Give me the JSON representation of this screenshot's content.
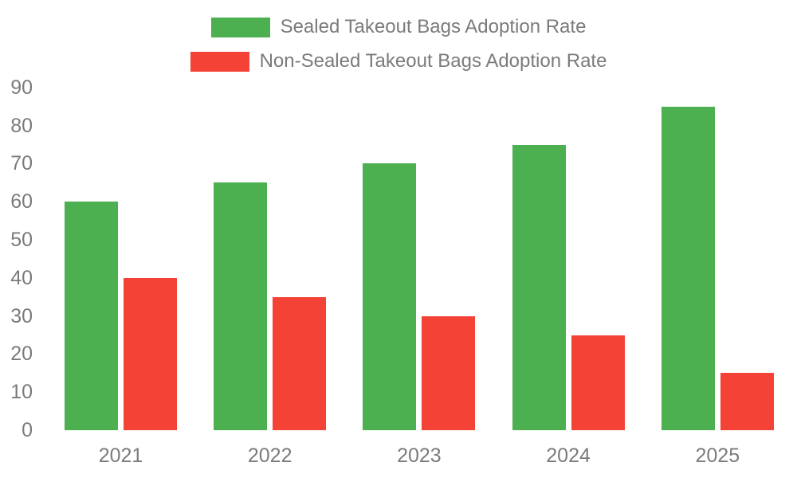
{
  "chart_data": {
    "type": "bar",
    "title": "",
    "xlabel": "",
    "ylabel": "",
    "categories": [
      "2021",
      "2022",
      "2023",
      "2024",
      "2025"
    ],
    "series": [
      {
        "name": "Sealed Takeout Bags Adoption Rate",
        "color": "#4caf50",
        "values": [
          60,
          65,
          70,
          75,
          85
        ]
      },
      {
        "name": "Non-Sealed Takeout Bags Adoption Rate",
        "color": "#f44336",
        "values": [
          40,
          35,
          30,
          25,
          15
        ]
      }
    ],
    "ylim": [
      0,
      90
    ],
    "yticks": [
      0,
      10,
      20,
      30,
      40,
      50,
      60,
      70,
      80,
      90
    ],
    "grid": false,
    "legend_position": "top-center"
  },
  "colors": {
    "text": "#7b7b7b",
    "background": "#ffffff"
  }
}
